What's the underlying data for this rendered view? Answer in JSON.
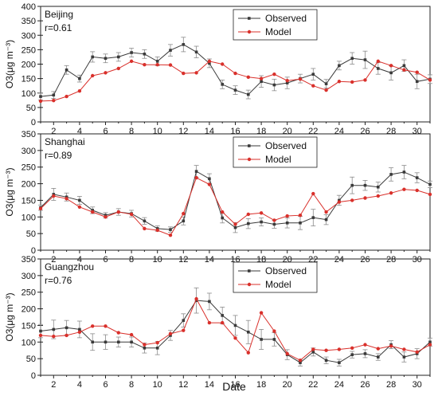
{
  "figure": {
    "xlabel": "Date"
  },
  "colors": {
    "observed": "#3a3a3a",
    "model": "#d9302b",
    "error_bar": "#8a8a8a"
  },
  "chart_data": [
    {
      "type": "line",
      "city": "Beijing",
      "r_label": "r=0.61",
      "ylabel": "O3(μg m⁻³)",
      "ylim": [
        0,
        400
      ],
      "yticks": [
        0,
        50,
        100,
        150,
        200,
        250,
        300,
        350,
        400
      ],
      "xlim": [
        1,
        31
      ],
      "xticks": [
        2,
        4,
        6,
        8,
        10,
        12,
        14,
        16,
        18,
        20,
        22,
        24,
        26,
        28,
        30
      ],
      "legend_position": "top-center",
      "x": [
        1,
        2,
        3,
        4,
        5,
        6,
        7,
        8,
        9,
        10,
        11,
        12,
        13,
        14,
        15,
        16,
        17,
        18,
        19,
        20,
        21,
        22,
        23,
        24,
        25,
        26,
        27,
        28,
        29,
        30,
        31
      ],
      "series": [
        {
          "name": "Observed",
          "values": [
            88,
            93,
            180,
            150,
            225,
            220,
            225,
            240,
            235,
            210,
            248,
            268,
            242,
            203,
            130,
            110,
            95,
            140,
            128,
            135,
            150,
            165,
            132,
            195,
            220,
            215,
            185,
            170,
            195,
            140,
            148
          ],
          "errors": [
            12,
            12,
            15,
            12,
            18,
            15,
            15,
            15,
            15,
            15,
            20,
            25,
            20,
            15,
            15,
            15,
            15,
            20,
            20,
            20,
            15,
            20,
            15,
            15,
            20,
            30,
            20,
            25,
            20,
            25,
            15
          ]
        },
        {
          "name": "Model",
          "values": [
            72,
            74,
            88,
            107,
            160,
            170,
            185,
            210,
            198,
            198,
            197,
            168,
            170,
            210,
            200,
            168,
            155,
            150,
            165,
            143,
            148,
            125,
            110,
            140,
            138,
            145,
            210,
            195,
            180,
            172,
            145
          ]
        }
      ]
    },
    {
      "type": "line",
      "city": "Shanghai",
      "r_label": "r=0.89",
      "ylabel": "O3(μg m⁻³)",
      "ylim": [
        0,
        350
      ],
      "yticks": [
        0,
        50,
        100,
        150,
        200,
        250,
        300,
        350
      ],
      "xlim": [
        1,
        31
      ],
      "xticks": [
        2,
        4,
        6,
        8,
        10,
        12,
        14,
        16,
        18,
        20,
        22,
        24,
        26,
        28,
        30
      ],
      "legend_position": "top-center",
      "x": [
        1,
        2,
        3,
        4,
        5,
        6,
        7,
        8,
        9,
        10,
        11,
        12,
        13,
        14,
        15,
        16,
        17,
        18,
        19,
        20,
        21,
        22,
        23,
        24,
        25,
        26,
        27,
        28,
        29,
        30,
        31
      ],
      "series": [
        {
          "name": "Observed",
          "values": [
            128,
            168,
            160,
            150,
            120,
            105,
            115,
            110,
            88,
            65,
            62,
            88,
            237,
            215,
            97,
            68,
            80,
            85,
            78,
            82,
            82,
            98,
            92,
            150,
            195,
            195,
            190,
            228,
            235,
            218,
            198
          ],
          "errors": [
            8,
            18,
            12,
            12,
            10,
            8,
            10,
            10,
            10,
            8,
            8,
            12,
            18,
            15,
            15,
            15,
            15,
            12,
            12,
            15,
            20,
            25,
            15,
            15,
            25,
            15,
            15,
            20,
            20,
            15,
            10
          ]
        },
        {
          "name": "Model",
          "values": [
            125,
            163,
            155,
            130,
            115,
            100,
            115,
            108,
            65,
            60,
            45,
            110,
            218,
            198,
            115,
            78,
            108,
            112,
            90,
            103,
            105,
            170,
            115,
            145,
            150,
            157,
            163,
            172,
            183,
            180,
            168
          ]
        }
      ]
    },
    {
      "type": "line",
      "city": "Guangzhou",
      "r_label": "r=0.76",
      "ylabel": "O3(μg m⁻³)",
      "ylim": [
        0,
        350
      ],
      "yticks": [
        0,
        50,
        100,
        150,
        200,
        250,
        300,
        350
      ],
      "xlim": [
        1,
        31
      ],
      "xticks": [
        2,
        4,
        6,
        8,
        10,
        12,
        14,
        16,
        18,
        20,
        22,
        24,
        26,
        28,
        30
      ],
      "legend_position": "top-center",
      "x": [
        1,
        2,
        3,
        4,
        5,
        6,
        7,
        8,
        9,
        10,
        11,
        12,
        13,
        14,
        15,
        16,
        17,
        18,
        19,
        20,
        21,
        22,
        23,
        24,
        25,
        26,
        27,
        28,
        29,
        30,
        31
      ],
      "series": [
        {
          "name": "Observed",
          "values": [
            133,
            138,
            143,
            138,
            100,
            100,
            100,
            100,
            82,
            82,
            120,
            165,
            225,
            222,
            180,
            150,
            130,
            108,
            108,
            62,
            38,
            70,
            45,
            38,
            62,
            65,
            55,
            92,
            55,
            65,
            100
          ],
          "errors": [
            20,
            28,
            22,
            25,
            25,
            22,
            15,
            15,
            15,
            20,
            15,
            20,
            38,
            25,
            25,
            30,
            35,
            30,
            20,
            15,
            10,
            12,
            10,
            10,
            10,
            12,
            10,
            12,
            15,
            15,
            12
          ]
        },
        {
          "name": "Model",
          "values": [
            120,
            117,
            120,
            130,
            148,
            148,
            128,
            122,
            92,
            98,
            125,
            135,
            230,
            158,
            158,
            112,
            68,
            188,
            133,
            65,
            45,
            78,
            75,
            78,
            82,
            92,
            80,
            88,
            78,
            70,
            92
          ]
        }
      ]
    }
  ]
}
